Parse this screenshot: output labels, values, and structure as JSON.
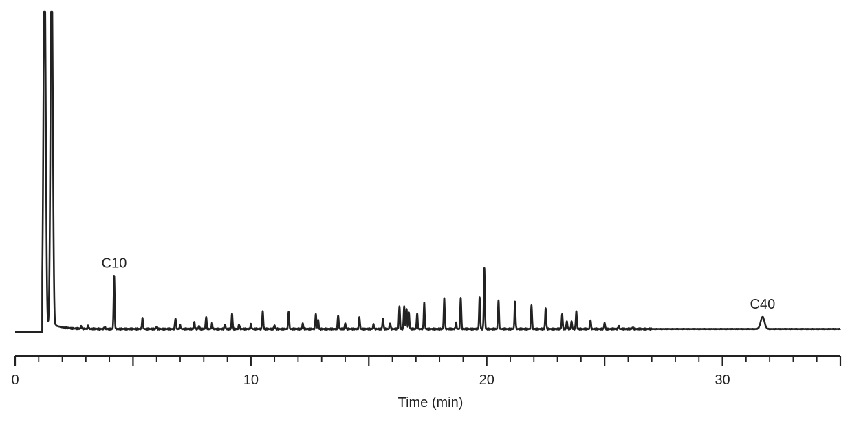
{
  "chart_data": {
    "type": "line",
    "title": "",
    "xlabel": "Time (min)",
    "ylabel": "",
    "xlim": [
      0,
      35
    ],
    "ylim": [
      0,
      100
    ],
    "grid": false,
    "legend": "none",
    "x_ticks": [
      0,
      10,
      20,
      30
    ],
    "tick_labels": [
      "0",
      "10",
      "20",
      "30"
    ],
    "minor_tick_step": 1,
    "line_color": "#222222",
    "baseline": 1.0,
    "solvent_peaks": [
      {
        "x": 1.25,
        "height": 120,
        "width": 0.05
      },
      {
        "x": 1.55,
        "height": 120,
        "width": 0.05
      }
    ],
    "peaks": [
      {
        "x": 2.8,
        "height": 0.8
      },
      {
        "x": 3.1,
        "height": 1.0
      },
      {
        "x": 3.8,
        "height": 0.7
      },
      {
        "x": 4.2,
        "height": 17.5
      },
      {
        "x": 5.4,
        "height": 3.5
      },
      {
        "x": 6.0,
        "height": 0.8
      },
      {
        "x": 6.8,
        "height": 3.6
      },
      {
        "x": 7.0,
        "height": 1.2
      },
      {
        "x": 7.6,
        "height": 2.2
      },
      {
        "x": 7.8,
        "height": 1.0
      },
      {
        "x": 8.1,
        "height": 4.0
      },
      {
        "x": 8.35,
        "height": 1.8
      },
      {
        "x": 8.9,
        "height": 1.5
      },
      {
        "x": 9.2,
        "height": 5.0
      },
      {
        "x": 9.5,
        "height": 1.5
      },
      {
        "x": 10.0,
        "height": 1.5
      },
      {
        "x": 10.5,
        "height": 5.8
      },
      {
        "x": 11.0,
        "height": 1.2
      },
      {
        "x": 11.6,
        "height": 5.8
      },
      {
        "x": 12.2,
        "height": 1.8
      },
      {
        "x": 12.75,
        "height": 5.0
      },
      {
        "x": 12.85,
        "height": 3.0
      },
      {
        "x": 13.7,
        "height": 4.5
      },
      {
        "x": 14.0,
        "height": 1.8
      },
      {
        "x": 14.6,
        "height": 4.0
      },
      {
        "x": 15.2,
        "height": 1.5
      },
      {
        "x": 15.6,
        "height": 3.5
      },
      {
        "x": 15.9,
        "height": 2.0
      },
      {
        "x": 16.3,
        "height": 7.5
      },
      {
        "x": 16.5,
        "height": 7.5
      },
      {
        "x": 16.6,
        "height": 6.5
      },
      {
        "x": 16.7,
        "height": 5.5
      },
      {
        "x": 17.05,
        "height": 5.0
      },
      {
        "x": 17.35,
        "height": 8.5
      },
      {
        "x": 18.2,
        "height": 10.0
      },
      {
        "x": 18.7,
        "height": 2.0
      },
      {
        "x": 18.9,
        "height": 10.5
      },
      {
        "x": 19.7,
        "height": 10.5
      },
      {
        "x": 19.9,
        "height": 20.0
      },
      {
        "x": 20.5,
        "height": 9.5
      },
      {
        "x": 21.2,
        "height": 8.8
      },
      {
        "x": 21.9,
        "height": 8.0
      },
      {
        "x": 22.5,
        "height": 6.8
      },
      {
        "x": 23.2,
        "height": 5.0
      },
      {
        "x": 23.4,
        "height": 2.5
      },
      {
        "x": 23.6,
        "height": 2.5
      },
      {
        "x": 23.8,
        "height": 5.8
      },
      {
        "x": 24.4,
        "height": 3.0
      },
      {
        "x": 25.0,
        "height": 2.0
      },
      {
        "x": 25.6,
        "height": 1.0
      },
      {
        "x": 26.2,
        "height": 0.6
      },
      {
        "x": 31.7,
        "height": 4.0,
        "width": 0.08
      }
    ],
    "annotations": [
      {
        "text": "C10",
        "x": 4.2
      },
      {
        "text": "C40",
        "x": 31.7
      }
    ]
  }
}
